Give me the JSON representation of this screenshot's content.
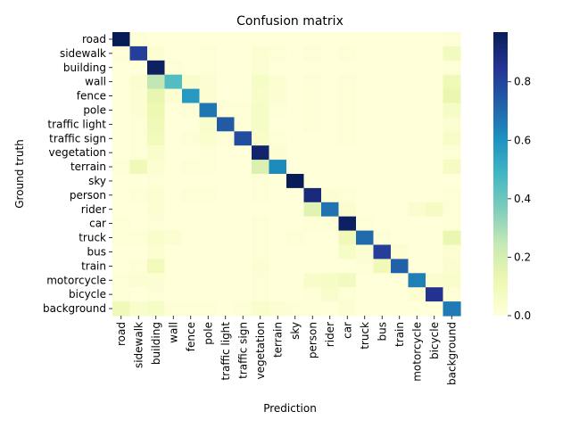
{
  "chart_data": {
    "type": "heatmap",
    "title": "Confusion matrix",
    "xlabel": "Prediction",
    "ylabel": "Ground truth",
    "labels": [
      "road",
      "sidewalk",
      "building",
      "wall",
      "fence",
      "pole",
      "traffic light",
      "traffic sign",
      "vegetation",
      "terrain",
      "sky",
      "person",
      "rider",
      "car",
      "truck",
      "bus",
      "train",
      "motorcycle",
      "bicycle",
      "background"
    ],
    "colorbar": {
      "min": 0.0,
      "max": 0.97,
      "ticks": [
        "0.0",
        "0.2",
        "0.4",
        "0.6",
        "0.8"
      ],
      "tick_values": [
        0.0,
        0.2,
        0.4,
        0.6,
        0.8
      ]
    },
    "colormap": "YlGnBu",
    "matrix": [
      [
        0.97,
        0.01,
        0.0,
        0.0,
        0.0,
        0.0,
        0.0,
        0.0,
        0.0,
        0.0,
        0.0,
        0.0,
        0.0,
        0.0,
        0.0,
        0.0,
        0.0,
        0.0,
        0.0,
        0.01
      ],
      [
        0.01,
        0.82,
        0.02,
        0.0,
        0.0,
        0.01,
        0.0,
        0.0,
        0.02,
        0.01,
        0.0,
        0.01,
        0.0,
        0.01,
        0.0,
        0.0,
        0.0,
        0.0,
        0.0,
        0.08
      ],
      [
        0.0,
        0.0,
        0.95,
        0.01,
        0.0,
        0.01,
        0.0,
        0.0,
        0.02,
        0.0,
        0.0,
        0.0,
        0.0,
        0.0,
        0.0,
        0.0,
        0.0,
        0.0,
        0.0,
        0.01
      ],
      [
        0.0,
        0.03,
        0.25,
        0.45,
        0.04,
        0.02,
        0.0,
        0.0,
        0.06,
        0.02,
        0.0,
        0.01,
        0.0,
        0.01,
        0.0,
        0.0,
        0.0,
        0.0,
        0.0,
        0.1
      ],
      [
        0.0,
        0.02,
        0.14,
        0.02,
        0.58,
        0.02,
        0.0,
        0.0,
        0.05,
        0.02,
        0.0,
        0.01,
        0.0,
        0.01,
        0.0,
        0.0,
        0.0,
        0.0,
        0.0,
        0.13
      ],
      [
        0.0,
        0.02,
        0.12,
        0.0,
        0.01,
        0.67,
        0.01,
        0.01,
        0.06,
        0.01,
        0.0,
        0.01,
        0.0,
        0.01,
        0.0,
        0.0,
        0.0,
        0.0,
        0.0,
        0.06
      ],
      [
        0.0,
        0.01,
        0.1,
        0.0,
        0.0,
        0.04,
        0.74,
        0.01,
        0.06,
        0.0,
        0.0,
        0.01,
        0.0,
        0.01,
        0.0,
        0.0,
        0.0,
        0.0,
        0.0,
        0.02
      ],
      [
        0.0,
        0.01,
        0.09,
        0.0,
        0.01,
        0.03,
        0.01,
        0.78,
        0.05,
        0.01,
        0.0,
        0.0,
        0.0,
        0.01,
        0.0,
        0.0,
        0.0,
        0.0,
        0.0,
        0.05
      ],
      [
        0.0,
        0.01,
        0.04,
        0.0,
        0.0,
        0.01,
        0.0,
        0.0,
        0.93,
        0.02,
        0.0,
        0.0,
        0.0,
        0.0,
        0.0,
        0.0,
        0.0,
        0.0,
        0.0,
        0.01
      ],
      [
        0.01,
        0.1,
        0.02,
        0.0,
        0.01,
        0.01,
        0.0,
        0.0,
        0.18,
        0.62,
        0.0,
        0.0,
        0.0,
        0.0,
        0.0,
        0.0,
        0.0,
        0.0,
        0.0,
        0.07
      ],
      [
        0.0,
        0.0,
        0.01,
        0.0,
        0.0,
        0.0,
        0.0,
        0.0,
        0.01,
        0.0,
        0.97,
        0.0,
        0.0,
        0.0,
        0.0,
        0.0,
        0.0,
        0.0,
        0.0,
        0.0
      ],
      [
        0.0,
        0.01,
        0.02,
        0.0,
        0.01,
        0.01,
        0.0,
        0.0,
        0.01,
        0.0,
        0.0,
        0.9,
        0.02,
        0.01,
        0.0,
        0.0,
        0.0,
        0.0,
        0.0,
        0.01
      ],
      [
        0.0,
        0.0,
        0.02,
        0.0,
        0.0,
        0.0,
        0.0,
        0.0,
        0.0,
        0.0,
        0.0,
        0.16,
        0.68,
        0.03,
        0.0,
        0.0,
        0.0,
        0.03,
        0.07,
        0.01
      ],
      [
        0.01,
        0.0,
        0.01,
        0.0,
        0.0,
        0.0,
        0.0,
        0.0,
        0.01,
        0.0,
        0.0,
        0.01,
        0.01,
        0.95,
        0.01,
        0.0,
        0.0,
        0.0,
        0.0,
        0.01
      ],
      [
        0.01,
        0.01,
        0.04,
        0.02,
        0.0,
        0.0,
        0.0,
        0.0,
        0.01,
        0.0,
        0.01,
        0.0,
        0.0,
        0.1,
        0.7,
        0.01,
        0.0,
        0.0,
        0.0,
        0.13
      ],
      [
        0.0,
        0.0,
        0.02,
        0.0,
        0.0,
        0.0,
        0.0,
        0.0,
        0.01,
        0.0,
        0.0,
        0.0,
        0.0,
        0.06,
        0.02,
        0.82,
        0.02,
        0.0,
        0.0,
        0.02
      ],
      [
        0.0,
        0.01,
        0.09,
        0.0,
        0.0,
        0.0,
        0.0,
        0.0,
        0.02,
        0.0,
        0.0,
        0.0,
        0.0,
        0.0,
        0.01,
        0.1,
        0.72,
        0.0,
        0.0,
        0.03
      ],
      [
        0.01,
        0.02,
        0.02,
        0.0,
        0.0,
        0.0,
        0.0,
        0.0,
        0.01,
        0.0,
        0.0,
        0.05,
        0.06,
        0.08,
        0.0,
        0.0,
        0.0,
        0.65,
        0.03,
        0.04
      ],
      [
        0.01,
        0.0,
        0.01,
        0.0,
        0.0,
        0.0,
        0.0,
        0.0,
        0.01,
        0.0,
        0.0,
        0.01,
        0.04,
        0.01,
        0.0,
        0.0,
        0.0,
        0.02,
        0.86,
        0.01
      ],
      [
        0.1,
        0.04,
        0.06,
        0.01,
        0.01,
        0.01,
        0.0,
        0.01,
        0.04,
        0.02,
        0.01,
        0.01,
        0.0,
        0.02,
        0.0,
        0.0,
        0.0,
        0.0,
        0.0,
        0.66
      ]
    ]
  }
}
